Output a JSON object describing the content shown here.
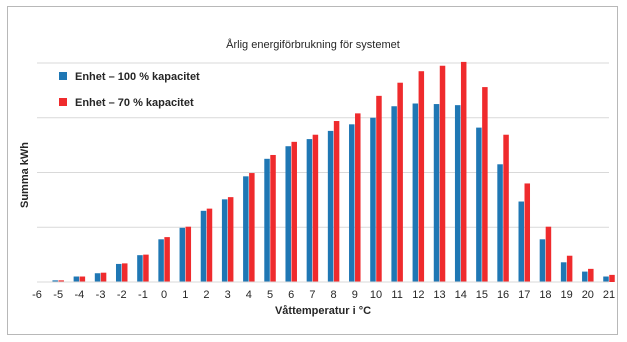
{
  "chart_data": {
    "type": "bar",
    "title": "Årlig energiförbrukning för systemet",
    "xlabel": "Våttemperatur i °C",
    "ylabel": "Summa kWh",
    "categories": [
      "-6",
      "-5",
      "-4",
      "-3",
      "-2",
      "-1",
      "0",
      "1",
      "2",
      "3",
      "4",
      "5",
      "6",
      "7",
      "8",
      "9",
      "10",
      "11",
      "12",
      "13",
      "14",
      "15",
      "16",
      "17",
      "18",
      "19",
      "20",
      "21"
    ],
    "series": [
      {
        "name": "Enhet – 100 % kapacitet",
        "color": "#1f77b4",
        "values": [
          null,
          0.3,
          1.0,
          1.6,
          3.3,
          4.9,
          7.8,
          9.9,
          13.0,
          15.1,
          19.3,
          22.5,
          24.8,
          26.1,
          27.6,
          28.8,
          30.0,
          32.1,
          32.6,
          32.5,
          32.3,
          28.2,
          21.5,
          14.7,
          7.8,
          3.6,
          1.9,
          1.0
        ]
      },
      {
        "name": "Enhet – 70 % kapacitet",
        "color": "#ef2b2d",
        "values": [
          null,
          0.3,
          1.0,
          1.7,
          3.4,
          5.0,
          8.2,
          10.1,
          13.4,
          15.5,
          19.9,
          23.2,
          25.6,
          26.9,
          29.4,
          30.8,
          34.0,
          36.4,
          38.5,
          39.5,
          40.2,
          35.6,
          26.9,
          18.0,
          10.1,
          4.8,
          2.4,
          1.3
        ]
      }
    ],
    "ylim": [
      0,
      40
    ],
    "gridlines": [
      0,
      10,
      20,
      30,
      40
    ],
    "grid": true,
    "legend_position": "top-left"
  }
}
